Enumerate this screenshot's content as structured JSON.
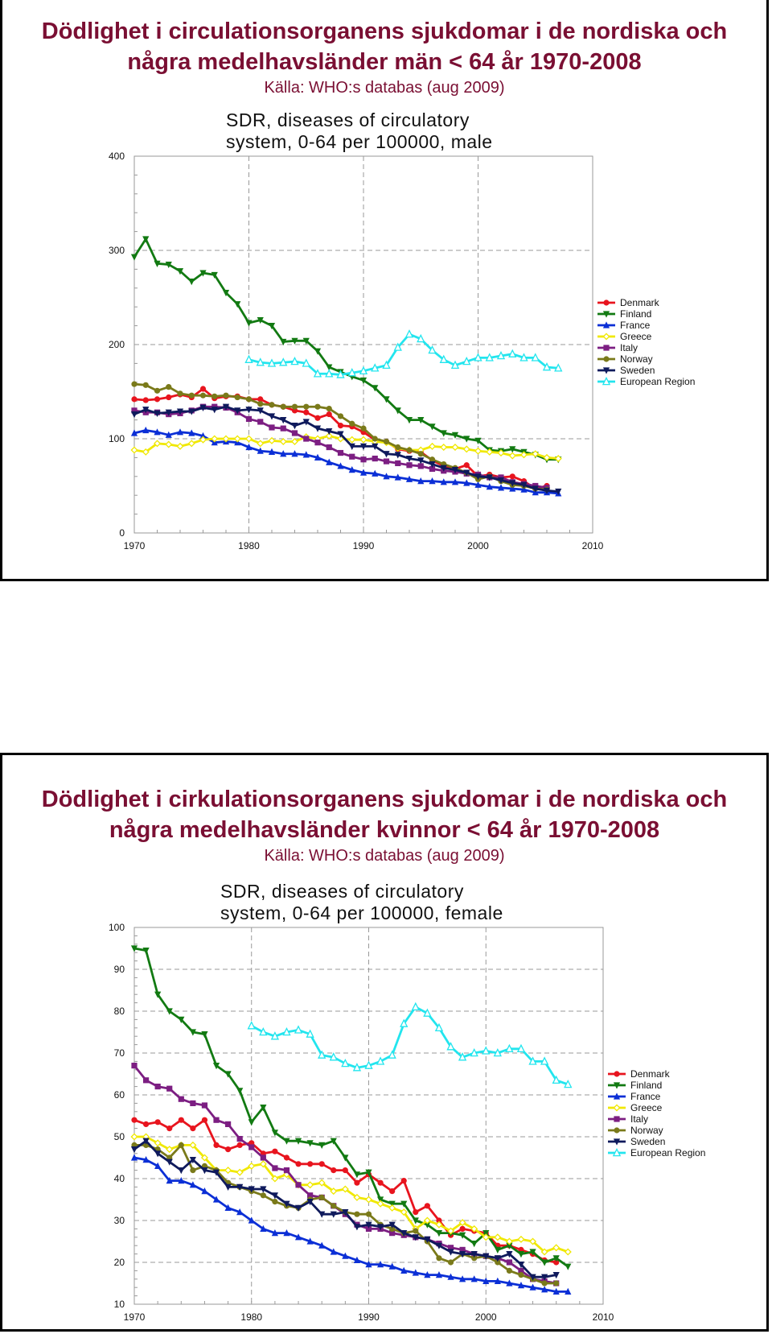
{
  "slides": [
    {
      "title_line1": "Dödlighet i circulationsorganens sjukdomar i de nordiska och",
      "title_line2": "några medelhavsländer män < 64 år 1970-2008",
      "source": "Källa: WHO:s databas (aug 2009)"
    },
    {
      "title_line1": "Dödlighet i cirkulationsorganens sjukdomar i de nordiska och",
      "title_line2": "några medelhavsländer kvinnor < 64 år 1970-2008",
      "source": "Källa: WHO:s databas (aug 2009)"
    }
  ],
  "chart_data": [
    {
      "type": "line",
      "title": "SDR, diseases of circulatory system, 0-64 per 100000, male",
      "title_lines": [
        "SDR, diseases of circulatory",
        "system, 0-64 per 100000, male"
      ],
      "xlim": [
        1970,
        2010
      ],
      "ylim": [
        0,
        400
      ],
      "xticks": [
        1970,
        1980,
        1990,
        2000,
        2010
      ],
      "yticks": [
        0,
        100,
        200,
        300,
        400
      ],
      "grid": true,
      "legend": "right",
      "series": [
        {
          "name": "Denmark",
          "color": "#e8141e",
          "marker": "circle",
          "x0": 1970,
          "values": [
            142,
            141,
            142,
            144,
            147,
            144,
            153,
            143,
            145,
            145,
            142,
            142,
            136,
            134,
            130,
            128,
            122,
            126,
            114,
            113,
            107,
            99,
            97,
            89,
            87,
            86,
            77,
            71,
            68,
            72,
            60,
            62,
            59,
            60,
            55,
            47,
            50
          ]
        },
        {
          "name": "Finland",
          "color": "#127a12",
          "marker": "tri-down",
          "x0": 1970,
          "values": [
            293,
            312,
            286,
            285,
            278,
            267,
            276,
            274,
            255,
            243,
            223,
            226,
            220,
            203,
            204,
            204,
            193,
            176,
            171,
            166,
            162,
            154,
            142,
            130,
            120,
            120,
            113,
            106,
            104,
            100,
            98,
            88,
            87,
            89,
            86,
            83,
            78,
            78
          ]
        },
        {
          "name": "France",
          "color": "#0b2fd6",
          "marker": "tri-up",
          "x0": 1970,
          "values": [
            106,
            109,
            107,
            104,
            107,
            106,
            103,
            96,
            97,
            96,
            91,
            87,
            86,
            84,
            84,
            83,
            80,
            75,
            71,
            67,
            64,
            63,
            60,
            59,
            57,
            55,
            55,
            54,
            54,
            53,
            51,
            49,
            48,
            47,
            46,
            43,
            43,
            42
          ]
        },
        {
          "name": "Greece",
          "color": "#f0e800",
          "marker": "diamond-open",
          "x0": 1970,
          "values": [
            88,
            86,
            95,
            94,
            92,
            95,
            99,
            100,
            100,
            100,
            100,
            95,
            98,
            97,
            97,
            102,
            100,
            103,
            100,
            99,
            99,
            97,
            96,
            90,
            88,
            88,
            92,
            91,
            91,
            89,
            87,
            86,
            85,
            82,
            83,
            84,
            80,
            79
          ]
        },
        {
          "name": "Italy",
          "color": "#7c1e82",
          "marker": "square",
          "x0": 1970,
          "values": [
            130,
            128,
            128,
            126,
            127,
            130,
            134,
            134,
            133,
            128,
            121,
            118,
            112,
            111,
            106,
            100,
            96,
            91,
            85,
            81,
            78,
            79,
            76,
            74,
            72,
            71,
            68,
            66,
            65,
            63,
            62,
            59,
            59,
            54,
            52,
            50,
            48
          ]
        },
        {
          "name": "Norway",
          "color": "#7a7a1a",
          "marker": "circle",
          "x0": 1970,
          "values": [
            158,
            157,
            151,
            155,
            148,
            146,
            146,
            145,
            146,
            144,
            142,
            137,
            136,
            134,
            134,
            134,
            134,
            132,
            124,
            116,
            111,
            100,
            97,
            91,
            88,
            84,
            78,
            73,
            69,
            64,
            57,
            60,
            55,
            51,
            50,
            47,
            46
          ]
        },
        {
          "name": "Sweden",
          "color": "#0f1a5c",
          "marker": "tri-down",
          "x0": 1970,
          "values": [
            126,
            131,
            127,
            128,
            129,
            129,
            133,
            131,
            134,
            130,
            131,
            130,
            124,
            120,
            114,
            118,
            111,
            108,
            105,
            92,
            92,
            92,
            84,
            83,
            79,
            77,
            73,
            69,
            67,
            64,
            60,
            59,
            56,
            53,
            51,
            47,
            45,
            44
          ]
        },
        {
          "name": "European Region",
          "color": "#22e5ee",
          "marker": "tri-up-open",
          "x0": 1980,
          "values": [
            184,
            181,
            180,
            181,
            182,
            180,
            169,
            169,
            168,
            170,
            172,
            175,
            178,
            197,
            211,
            206,
            194,
            184,
            178,
            182,
            186,
            186,
            188,
            190,
            186,
            186,
            176,
            175
          ]
        }
      ]
    },
    {
      "type": "line",
      "title": "SDR, diseases of circulatory system, 0-64 per 100000, female",
      "title_lines": [
        "SDR, diseases of circulatory",
        "system, 0-64 per 100000, female"
      ],
      "xlim": [
        1970,
        2010
      ],
      "ylim": [
        10,
        100
      ],
      "xticks": [
        1970,
        1980,
        1990,
        2000,
        2010
      ],
      "yticks": [
        10,
        20,
        30,
        40,
        50,
        60,
        70,
        80,
        90,
        100
      ],
      "grid": true,
      "legend": "right",
      "series": [
        {
          "name": "Denmark",
          "color": "#e8141e",
          "marker": "circle",
          "x0": 1970,
          "values": [
            54,
            53,
            53.5,
            52,
            54,
            52,
            54,
            48,
            47,
            48,
            48.5,
            46,
            46.5,
            45,
            43.5,
            43.5,
            43.5,
            42,
            42,
            39,
            41,
            39,
            37,
            39.5,
            32,
            33.5,
            30,
            26.5,
            28,
            27.5,
            27,
            24,
            24,
            23,
            22,
            20.5,
            20
          ]
        },
        {
          "name": "Finland",
          "color": "#127a12",
          "marker": "tri-down",
          "x0": 1970,
          "values": [
            95,
            94.5,
            84,
            80,
            78,
            75,
            74.5,
            67,
            65,
            61,
            53.5,
            57,
            51,
            49,
            49,
            48.5,
            48,
            49,
            45,
            41,
            41.5,
            35,
            34,
            34,
            30,
            29,
            27,
            27,
            26.5,
            24.5,
            27,
            23,
            24,
            22,
            22.5,
            20,
            21,
            19
          ]
        },
        {
          "name": "France",
          "color": "#0b2fd6",
          "marker": "tri-up",
          "x0": 1970,
          "values": [
            45,
            44.5,
            43,
            39.5,
            39.5,
            38.5,
            37,
            35,
            33,
            32,
            30,
            28,
            27,
            27,
            26,
            25,
            24,
            22.5,
            21.5,
            20.5,
            19.5,
            19.5,
            19,
            18,
            17.5,
            17,
            17,
            16.5,
            16,
            16,
            15.5,
            15.5,
            15,
            14.5,
            14,
            13.5,
            13,
            13
          ]
        },
        {
          "name": "Greece",
          "color": "#f0e800",
          "marker": "diamond-open",
          "x0": 1970,
          "values": [
            50,
            50,
            48.5,
            47,
            48,
            48,
            45,
            42,
            42,
            41.5,
            43,
            43.5,
            40,
            41,
            38.5,
            38.5,
            39,
            37,
            37.5,
            35.5,
            35,
            34,
            33,
            32,
            28,
            30,
            29,
            27.5,
            29.5,
            28,
            26,
            26,
            25,
            25.5,
            25,
            22.5,
            23.5,
            22.5
          ]
        },
        {
          "name": "Italy",
          "color": "#7c1e82",
          "marker": "square",
          "x0": 1970,
          "values": [
            67,
            63.5,
            62,
            61.5,
            59,
            58,
            57.5,
            54,
            53,
            49.5,
            47.5,
            45,
            42.5,
            42,
            38.5,
            36,
            35.5,
            33.5,
            31.5,
            29,
            28,
            28,
            27,
            26.5,
            26,
            25.5,
            24.5,
            23.5,
            23,
            22,
            21.5,
            21,
            20,
            18,
            16,
            15.5,
            15
          ]
        },
        {
          "name": "Norway",
          "color": "#7a7a1a",
          "marker": "circle",
          "x0": 1970,
          "values": [
            48,
            48,
            47,
            45,
            48,
            42,
            43,
            42,
            39,
            38,
            37,
            36,
            34.5,
            33.5,
            33,
            35,
            35.5,
            33.5,
            32,
            31.5,
            31.5,
            29,
            28,
            27,
            27.5,
            25,
            21,
            20,
            22,
            21,
            21.5,
            20,
            18,
            17,
            16,
            15,
            15
          ]
        },
        {
          "name": "Sweden",
          "color": "#0f1a5c",
          "marker": "tri-down",
          "x0": 1970,
          "values": [
            47,
            49,
            46,
            44,
            42,
            44.5,
            42,
            41.5,
            38,
            38,
            37.5,
            37.5,
            36,
            34,
            33,
            34.5,
            31.5,
            31.5,
            32,
            28.5,
            29,
            28.5,
            29,
            27,
            26,
            25.5,
            24,
            22.5,
            22,
            22,
            21.5,
            21,
            22,
            19.5,
            16.5,
            16.5,
            17
          ]
        },
        {
          "name": "European Region",
          "color": "#22e5ee",
          "marker": "tri-up-open",
          "x0": 1980,
          "values": [
            76.5,
            75,
            74,
            75,
            75.5,
            74.5,
            69.5,
            69,
            67.5,
            66.5,
            67,
            68,
            69.5,
            77,
            81,
            79.5,
            76,
            71.5,
            69,
            70,
            70.5,
            70,
            71,
            71,
            68,
            68,
            63.5,
            62.5
          ]
        }
      ]
    }
  ]
}
